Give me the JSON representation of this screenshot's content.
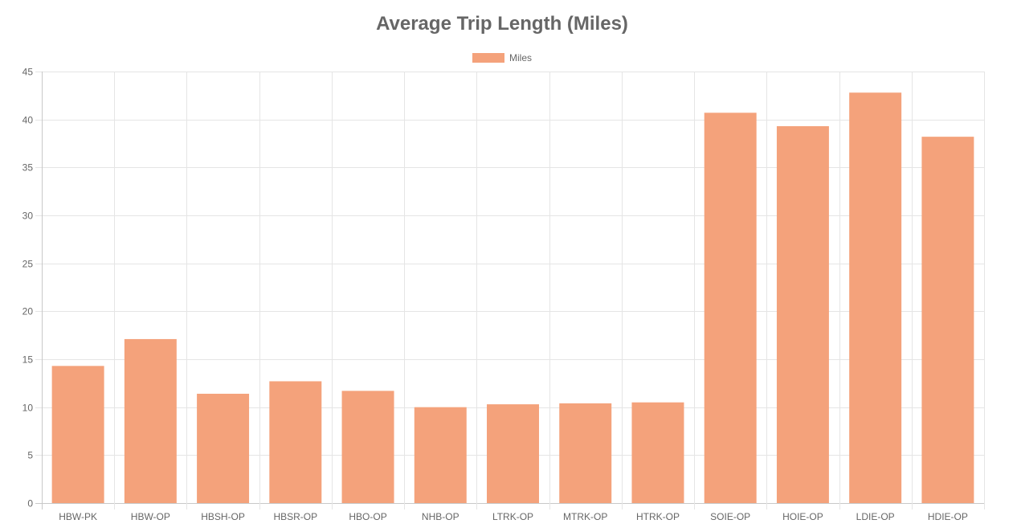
{
  "chart_data": {
    "type": "bar",
    "title": "Average Trip Length (Miles)",
    "xlabel": "",
    "ylabel": "",
    "categories": [
      "HBW-PK",
      "HBW-OP",
      "HBSH-OP",
      "HBSR-OP",
      "HBO-OP",
      "NHB-OP",
      "LTRK-OP",
      "MTRK-OP",
      "HTRK-OP",
      "SOIE-OP",
      "HOIE-OP",
      "LDIE-OP",
      "HDIE-OP"
    ],
    "series": [
      {
        "name": "Miles",
        "color": "#f4a27b",
        "values": [
          14.3,
          17.1,
          11.4,
          12.7,
          11.7,
          10.0,
          10.3,
          10.4,
          10.5,
          40.7,
          39.3,
          42.8,
          38.2
        ]
      }
    ],
    "ylim": [
      0,
      45
    ],
    "yticks": [
      "0",
      "5",
      "10",
      "15",
      "20",
      "25",
      "30",
      "35",
      "40",
      "45"
    ],
    "grid": true,
    "legend_position": "top"
  }
}
